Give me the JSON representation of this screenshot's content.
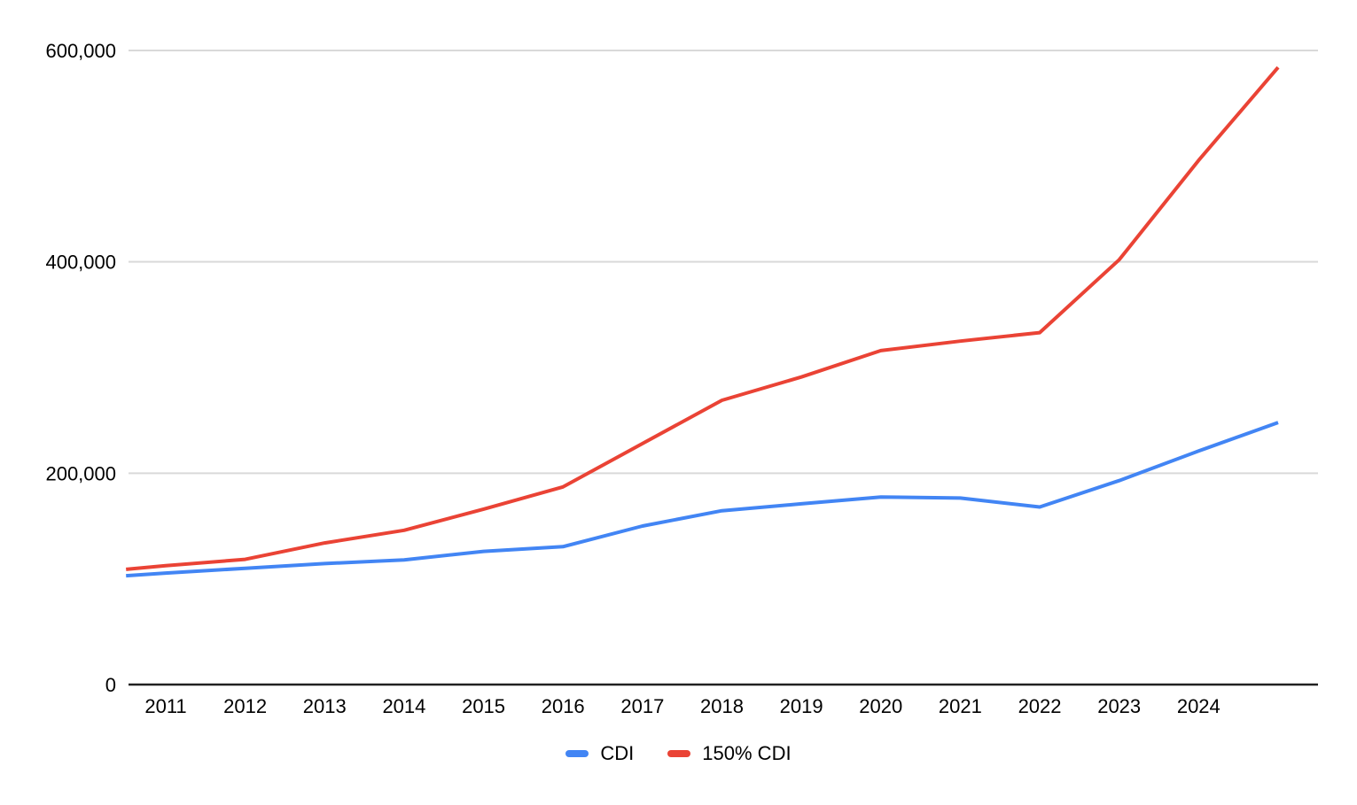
{
  "chart_data": {
    "type": "line",
    "title": "",
    "x": [
      2010.5,
      2011,
      2012,
      2013,
      2014,
      2015,
      2016,
      2017,
      2018,
      2019,
      2020,
      2021,
      2022,
      2023,
      2024,
      2025
    ],
    "x_tick_labels": [
      "2011",
      "2012",
      "2013",
      "2014",
      "2015",
      "2016",
      "2017",
      "2018",
      "2019",
      "2020",
      "2021",
      "2022",
      "2023",
      "2024"
    ],
    "x_tick_years": [
      2011,
      2012,
      2013,
      2014,
      2015,
      2016,
      2017,
      2018,
      2019,
      2020,
      2021,
      2022,
      2023,
      2024
    ],
    "y_ticks": [
      0,
      200000,
      400000,
      600000
    ],
    "y_tick_labels": [
      "0",
      "200,000",
      "400,000",
      "600,000"
    ],
    "ylim": [
      0,
      620000
    ],
    "grid": true,
    "legend_position": "bottom",
    "series": [
      {
        "name": "CDI",
        "color": "#4285F4",
        "values": [
          103000,
          105500,
          110000,
          114500,
          118000,
          126000,
          130500,
          150000,
          164500,
          171000,
          177500,
          176500,
          168000,
          193000,
          221000,
          248000
        ]
      },
      {
        "name": "150% CDI",
        "color": "#EA4335",
        "values": [
          109000,
          112500,
          118500,
          134000,
          146000,
          166000,
          187000,
          228000,
          269000,
          291000,
          316000,
          325000,
          333000,
          402000,
          496000,
          584000
        ]
      }
    ],
    "axis_colors": {
      "gridline": "#D9D9D9",
      "baseline": "#212121",
      "label": "#000000"
    }
  }
}
